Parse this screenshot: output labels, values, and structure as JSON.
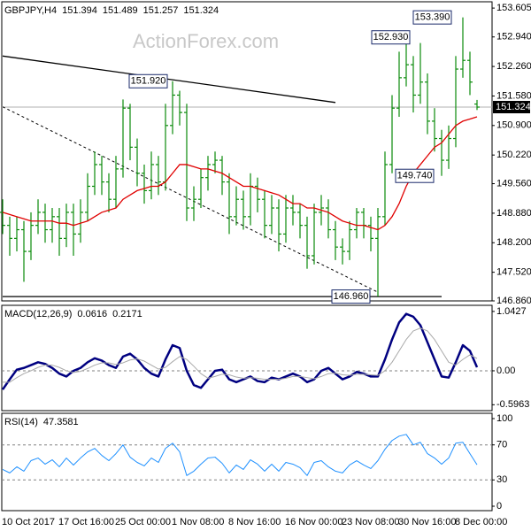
{
  "chart_data": [
    {
      "type": "ohlc",
      "title": "GBPJPY,H4",
      "watermark": "ActionForex.com",
      "color": "#0a8a0a",
      "ma_color": "#e00000",
      "categories": [
        "10 Oct 2017",
        null,
        null,
        null,
        null,
        null,
        null,
        null,
        "17 Oct 16:00",
        null,
        null,
        null,
        null,
        null,
        null,
        null,
        "25 Oct 00:00",
        null,
        null,
        null,
        null,
        null,
        null,
        null,
        "1 Nov 08:00",
        null,
        null,
        null,
        null,
        null,
        null,
        null,
        "8 Nov 16:00",
        null,
        null,
        null,
        null,
        null,
        null,
        null,
        "16 Nov 00:00",
        null,
        null,
        null,
        null,
        null,
        null,
        null,
        "23 Nov 08:00",
        null,
        null,
        null,
        null,
        null,
        null,
        null,
        "30 Nov 16:00",
        null,
        null,
        null,
        null,
        null,
        null,
        null,
        "8 Dec 00:00",
        null,
        null,
        null
      ],
      "open": [
        148.9,
        148.6,
        148.3,
        148.5,
        148.0,
        148.6,
        148.9,
        148.5,
        148.8,
        148.3,
        148.9,
        148.4,
        148.9,
        149.5,
        150.0,
        149.6,
        149.2,
        149.9,
        151.3,
        150.4,
        149.8,
        149.4,
        150.0,
        149.6,
        150.9,
        151.6,
        151.2,
        149.0,
        149.2,
        149.7,
        150.0,
        150.1,
        149.6,
        148.8,
        149.2,
        148.8,
        149.5,
        149.2,
        148.6,
        149.0,
        148.4,
        149.0,
        148.9,
        148.6,
        147.9,
        148.9,
        149.0,
        148.5,
        148.1,
        148.0,
        148.5,
        148.9,
        148.6,
        148.3,
        148.8,
        150.0,
        151.3,
        152.0,
        152.3,
        151.6,
        151.9,
        151.0,
        150.6,
        150.1,
        150.6,
        152.2,
        152.4,
        151.394
      ],
      "high": [
        149.2,
        148.8,
        148.8,
        148.7,
        148.9,
        149.2,
        149.1,
        149.0,
        149.0,
        149.1,
        149.1,
        149.2,
        149.8,
        150.3,
        150.2,
        149.8,
        150.2,
        151.5,
        151.4,
        150.6,
        150.0,
        150.3,
        150.2,
        151.4,
        151.92,
        151.7,
        151.4,
        149.5,
        149.9,
        150.2,
        150.3,
        150.2,
        149.8,
        149.5,
        149.4,
        149.8,
        149.7,
        149.4,
        149.3,
        149.2,
        149.3,
        149.3,
        149.1,
        148.8,
        149.1,
        149.3,
        149.2,
        148.7,
        148.3,
        148.7,
        149.0,
        149.0,
        148.8,
        149.0,
        150.3,
        151.6,
        152.6,
        152.93,
        152.5,
        152.8,
        152.1,
        151.3,
        150.8,
        150.9,
        152.5,
        153.39,
        152.6,
        151.489
      ],
      "low": [
        148.4,
        147.9,
        148.0,
        147.3,
        147.8,
        148.4,
        148.2,
        148.2,
        147.9,
        148.1,
        147.9,
        148.2,
        148.7,
        149.3,
        149.3,
        148.9,
        149.0,
        149.7,
        150.1,
        149.5,
        149.1,
        149.2,
        149.3,
        149.4,
        150.7,
        150.9,
        148.7,
        148.7,
        149.0,
        149.4,
        149.8,
        149.3,
        148.4,
        148.6,
        148.5,
        148.6,
        148.9,
        148.3,
        148.4,
        148.0,
        148.2,
        148.6,
        148.3,
        147.6,
        147.7,
        148.6,
        148.3,
        147.8,
        147.7,
        147.8,
        148.3,
        148.3,
        148.0,
        146.96,
        148.6,
        149.8,
        151.1,
        151.8,
        151.2,
        151.4,
        150.7,
        150.3,
        149.74,
        149.9,
        150.4,
        152.0,
        151.6,
        151.257
      ],
      "close": [
        148.6,
        148.3,
        148.5,
        148.0,
        148.6,
        148.9,
        148.5,
        148.8,
        148.3,
        148.9,
        148.4,
        148.9,
        149.5,
        150.0,
        149.6,
        149.2,
        149.9,
        151.3,
        150.4,
        149.8,
        149.4,
        150.0,
        149.6,
        150.9,
        151.6,
        151.2,
        149.0,
        149.2,
        149.7,
        150.0,
        150.1,
        149.6,
        148.8,
        149.2,
        148.8,
        149.5,
        149.2,
        148.6,
        149.0,
        148.4,
        149.0,
        148.9,
        148.6,
        147.9,
        148.9,
        149.0,
        148.5,
        148.1,
        148.0,
        148.5,
        148.9,
        148.6,
        148.3,
        148.8,
        150.0,
        151.3,
        152.0,
        152.3,
        151.6,
        151.9,
        151.0,
        150.6,
        150.1,
        150.6,
        152.2,
        152.4,
        151.9,
        151.324
      ],
      "ma_values": [
        148.9,
        148.85,
        148.8,
        148.75,
        148.7,
        148.7,
        148.7,
        148.7,
        148.65,
        148.65,
        148.6,
        148.65,
        148.7,
        148.8,
        148.9,
        148.95,
        149.0,
        149.2,
        149.3,
        149.4,
        149.45,
        149.5,
        149.5,
        149.6,
        149.8,
        150.0,
        150.0,
        149.95,
        149.9,
        149.9,
        149.85,
        149.8,
        149.7,
        149.6,
        149.5,
        149.5,
        149.45,
        149.4,
        149.35,
        149.3,
        149.2,
        149.1,
        149.1,
        149.0,
        149.0,
        148.95,
        148.9,
        148.8,
        148.7,
        148.65,
        148.6,
        148.6,
        148.55,
        148.5,
        148.6,
        148.8,
        149.1,
        149.5,
        149.8,
        150.0,
        150.2,
        150.4,
        150.5,
        150.7,
        150.9,
        151.0,
        151.05,
        151.1
      ],
      "trendlines": [
        {
          "style": "solid",
          "x": [
            0,
            47
          ],
          "values": [
            152.5,
            151.43
          ]
        },
        {
          "style": "dashed",
          "x": [
            0,
            53
          ],
          "values": [
            151.33,
            147.06
          ]
        },
        {
          "style": "solid",
          "x": [
            0,
            62
          ],
          "values": [
            146.96,
            146.96
          ]
        }
      ],
      "annotations": [
        {
          "label": "151.920",
          "value": 151.92
        },
        {
          "label": "152.930",
          "value": 152.93
        },
        {
          "label": "153.390",
          "value": 153.39
        },
        {
          "label": "149.740",
          "value": 149.74
        },
        {
          "label": "146.960",
          "value": 146.96
        }
      ],
      "ylim": [
        146.86,
        153.75
      ],
      "yticks": [
        153.605,
        {
          "value": 152.94,
          "label": "152.940"
        },
        {
          "value": 152.26,
          "label": "152.260"
        },
        {
          "value": 151.58,
          "label": "151.580"
        },
        {
          "value": 150.9,
          "label": "150.900"
        },
        {
          "value": 150.22,
          "label": "150.220"
        },
        {
          "value": 149.56,
          "label": "149.560"
        },
        {
          "value": 148.88,
          "label": "148.880"
        },
        {
          "value": 148.2,
          "label": "148.200"
        },
        {
          "value": 147.52,
          "label": "147.520"
        },
        {
          "value": 146.86,
          "label": "146.860"
        }
      ]
    },
    {
      "type": "line",
      "title": "MACD(12,26,9)",
      "series": [
        {
          "color": "#000080",
          "values": [
            -0.33,
            -0.15,
            0.02,
            0.05,
            0.1,
            0.15,
            0.12,
            0.05,
            -0.05,
            -0.1,
            0.0,
            0.05,
            0.15,
            0.22,
            0.18,
            0.1,
            0.05,
            0.25,
            0.3,
            0.2,
            0.05,
            -0.05,
            -0.1,
            0.2,
            0.45,
            0.4,
            0.0,
            -0.25,
            -0.3,
            -0.15,
            0.0,
            0.02,
            -0.15,
            -0.2,
            -0.15,
            -0.1,
            -0.18,
            -0.2,
            -0.12,
            -0.15,
            -0.1,
            -0.05,
            -0.1,
            -0.2,
            -0.15,
            0.0,
            0.05,
            -0.05,
            -0.15,
            -0.1,
            -0.02,
            -0.05,
            -0.1,
            -0.1,
            0.2,
            0.55,
            0.85,
            1.0,
            0.95,
            0.8,
            0.5,
            0.2,
            -0.1,
            -0.12,
            0.15,
            0.45,
            0.35,
            0.0616
          ]
        },
        {
          "color": "#a9a9a9",
          "values": [
            -0.2,
            -0.2,
            -0.12,
            -0.05,
            0.0,
            0.06,
            0.1,
            0.1,
            0.06,
            0.0,
            -0.03,
            -0.01,
            0.04,
            0.1,
            0.14,
            0.14,
            0.11,
            0.14,
            0.19,
            0.21,
            0.17,
            0.1,
            0.03,
            0.06,
            0.16,
            0.25,
            0.2,
            0.08,
            -0.05,
            -0.13,
            -0.1,
            -0.06,
            -0.07,
            -0.11,
            -0.13,
            -0.12,
            -0.13,
            -0.15,
            -0.15,
            -0.15,
            -0.13,
            -0.1,
            -0.1,
            -0.12,
            -0.14,
            -0.1,
            -0.05,
            -0.04,
            -0.07,
            -0.08,
            -0.06,
            -0.06,
            -0.07,
            -0.08,
            0.0,
            0.15,
            0.35,
            0.55,
            0.7,
            0.75,
            0.7,
            0.55,
            0.35,
            0.15,
            0.1,
            0.2,
            0.28,
            0.2171
          ]
        }
      ],
      "ylim": [
        -0.7,
        1.15
      ],
      "yticks": [
        1.0427,
        {
          "value": 0,
          "label": "0.00"
        },
        -0.5963
      ],
      "levels": [
        0
      ]
    },
    {
      "type": "line",
      "title": "RSI(14)",
      "series": [
        {
          "color": "#1e90ff",
          "values": [
            42,
            38,
            45,
            40,
            52,
            55,
            48,
            53,
            45,
            55,
            47,
            55,
            62,
            66,
            58,
            52,
            60,
            70,
            56,
            50,
            46,
            55,
            50,
            66,
            72,
            62,
            35,
            40,
            48,
            55,
            56,
            49,
            38,
            47,
            42,
            53,
            48,
            40,
            48,
            40,
            50,
            48,
            44,
            35,
            50,
            52,
            45,
            40,
            38,
            47,
            52,
            47,
            43,
            52,
            65,
            75,
            80,
            82,
            70,
            73,
            60,
            55,
            48,
            55,
            72,
            73,
            60,
            47.3581
          ]
        }
      ],
      "ylim": [
        0,
        100
      ],
      "yticks": [
        100,
        70,
        30,
        0
      ],
      "levels": [
        70,
        30
      ]
    }
  ]
}
